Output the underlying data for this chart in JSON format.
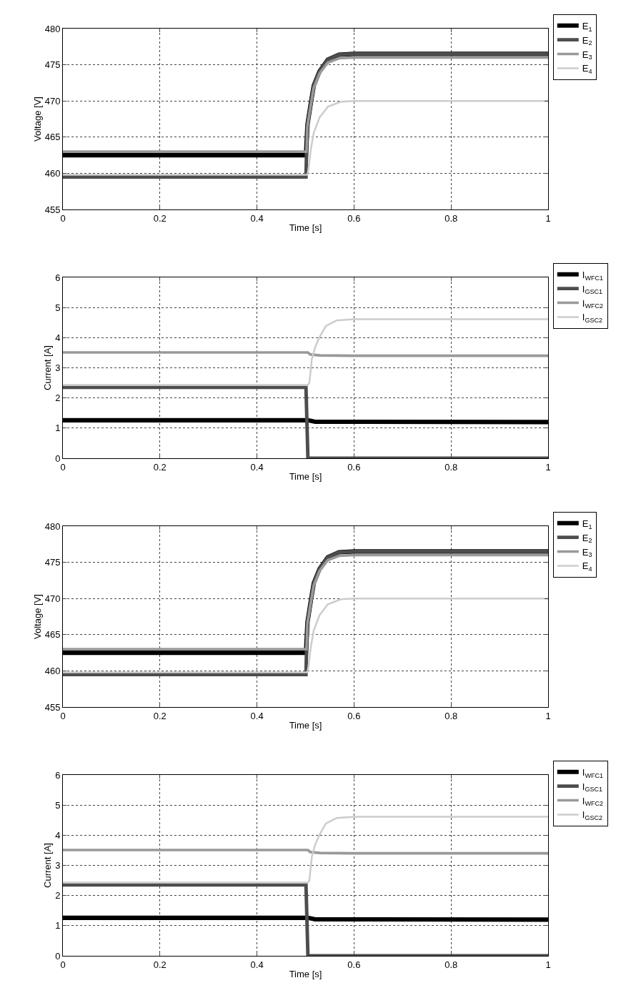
{
  "chart_data": [
    {
      "type": "line",
      "xlabel": "Time [s]",
      "ylabel": "Voltage [V]",
      "xlim": [
        0,
        1
      ],
      "xticks": [
        0,
        0.2,
        0.4,
        0.6,
        0.8,
        1
      ],
      "ylim": [
        455,
        480
      ],
      "yticks": [
        455,
        460,
        465,
        470,
        475,
        480
      ],
      "grid": true,
      "legend": "top right",
      "series": [
        {
          "name": "E$_{1}$",
          "color": "#000000",
          "x": [
            0,
            0.501,
            0.504,
            0.511,
            0.517,
            0.529,
            0.546,
            0.569,
            0.6,
            1
          ],
          "values": [
            462.5,
            462.5,
            466.7,
            469.7,
            472.1,
            474.1,
            475.7,
            476.4,
            476.5,
            476.5
          ]
        },
        {
          "name": "E$_{2}$",
          "color": "#4d4d4d",
          "x": [
            0,
            0.501,
            0.502,
            0.504,
            0.511,
            0.517,
            0.529,
            0.546,
            0.569,
            0.6,
            1
          ],
          "values": [
            459.5,
            459.5,
            462.5,
            466.7,
            469.7,
            472.1,
            474.1,
            475.7,
            476.4,
            476.5,
            476.5
          ]
        },
        {
          "name": "E$_{3}$",
          "color": "#999999",
          "x": [
            0,
            0.502,
            0.504,
            0.511,
            0.517,
            0.529,
            0.546,
            0.569,
            0.6,
            1
          ],
          "values": [
            463.0,
            463.0,
            466.5,
            469.4,
            471.8,
            473.8,
            475.3,
            475.9,
            476.0,
            476.0
          ]
        },
        {
          "name": "E$_{4}$",
          "color": "#cccccc",
          "x": [
            0,
            0.504,
            0.506,
            0.511,
            0.517,
            0.529,
            0.546,
            0.573,
            0.6,
            1
          ],
          "values": [
            459.8,
            459.8,
            460.5,
            463.3,
            465.6,
            467.7,
            469.2,
            469.9,
            470.0,
            470.0
          ]
        }
      ]
    },
    {
      "type": "line",
      "xlabel": "Time [s]",
      "ylabel": "Current [A]",
      "xlim": [
        0,
        1
      ],
      "xticks": [
        0,
        0.2,
        0.4,
        0.6,
        0.8,
        1
      ],
      "ylim": [
        0,
        6
      ],
      "yticks": [
        0,
        1,
        2,
        3,
        4,
        5,
        6
      ],
      "grid": true,
      "legend": "top right",
      "series": [
        {
          "name": "I$_{WFC1}$",
          "color": "#000000",
          "x": [
            0,
            0.505,
            0.52,
            1
          ],
          "values": [
            1.26,
            1.26,
            1.21,
            1.2
          ]
        },
        {
          "name": "I$_{GSC1}$",
          "color": "#4d4d4d",
          "x": [
            0,
            0.501,
            0.505,
            1
          ],
          "values": [
            2.35,
            2.35,
            0,
            0
          ]
        },
        {
          "name": "I$_{WFC2}$",
          "color": "#999999",
          "x": [
            0,
            0.505,
            0.51,
            0.53,
            0.6,
            1
          ],
          "values": [
            3.51,
            3.51,
            3.44,
            3.41,
            3.4,
            3.4
          ]
        },
        {
          "name": "I$_{GSC2}$",
          "color": "#cccccc",
          "x": [
            0,
            0.505,
            0.508,
            0.513,
            0.52,
            0.529,
            0.542,
            0.564,
            0.6,
            1
          ],
          "values": [
            2.43,
            2.43,
            2.5,
            3.28,
            3.69,
            4.02,
            4.39,
            4.57,
            4.61,
            4.61
          ]
        }
      ]
    },
    {
      "type": "line",
      "xlabel": "Time [s]",
      "ylabel": "Voltage [V]",
      "xlim": [
        0,
        1
      ],
      "xticks": [
        0,
        0.2,
        0.4,
        0.6,
        0.8,
        1
      ],
      "ylim": [
        455,
        480
      ],
      "yticks": [
        455,
        460,
        465,
        470,
        475,
        480
      ],
      "grid": true,
      "legend": "top right",
      "series": [
        {
          "name": "E$_{1}$",
          "color": "#000000",
          "x": [
            0,
            0.501,
            0.504,
            0.511,
            0.517,
            0.529,
            0.546,
            0.569,
            0.6,
            1
          ],
          "values": [
            462.5,
            462.5,
            466.7,
            469.7,
            472.1,
            474.1,
            475.7,
            476.4,
            476.5,
            476.5
          ]
        },
        {
          "name": "E$_{2}$",
          "color": "#4d4d4d",
          "x": [
            0,
            0.501,
            0.502,
            0.504,
            0.511,
            0.517,
            0.529,
            0.546,
            0.569,
            0.6,
            1
          ],
          "values": [
            459.5,
            459.5,
            462.5,
            466.7,
            469.7,
            472.1,
            474.1,
            475.7,
            476.4,
            476.5,
            476.5
          ]
        },
        {
          "name": "E$_{3}$",
          "color": "#999999",
          "x": [
            0,
            0.502,
            0.504,
            0.511,
            0.517,
            0.529,
            0.546,
            0.569,
            0.6,
            1
          ],
          "values": [
            463.0,
            463.0,
            466.5,
            469.4,
            471.8,
            473.8,
            475.3,
            475.9,
            476.0,
            476.0
          ]
        },
        {
          "name": "E$_{4}$",
          "color": "#cccccc",
          "x": [
            0,
            0.504,
            0.506,
            0.511,
            0.517,
            0.529,
            0.546,
            0.573,
            0.6,
            1
          ],
          "values": [
            459.8,
            459.8,
            460.5,
            463.3,
            465.6,
            467.7,
            469.2,
            469.9,
            470.0,
            470.0
          ]
        }
      ]
    },
    {
      "type": "line",
      "xlabel": "Time [s]",
      "ylabel": "Current [A]",
      "xlim": [
        0,
        1
      ],
      "xticks": [
        0,
        0.2,
        0.4,
        0.6,
        0.8,
        1
      ],
      "ylim": [
        0,
        6
      ],
      "yticks": [
        0,
        1,
        2,
        3,
        4,
        5,
        6
      ],
      "grid": true,
      "legend": "top right",
      "series": [
        {
          "name": "I$_{WFC1}$",
          "color": "#000000",
          "x": [
            0,
            0.505,
            0.52,
            1
          ],
          "values": [
            1.26,
            1.26,
            1.21,
            1.2
          ]
        },
        {
          "name": "I$_{GSC1}$",
          "color": "#4d4d4d",
          "x": [
            0,
            0.501,
            0.505,
            1
          ],
          "values": [
            2.35,
            2.35,
            0,
            0
          ]
        },
        {
          "name": "I$_{WFC2}$",
          "color": "#999999",
          "x": [
            0,
            0.505,
            0.51,
            0.53,
            0.6,
            1
          ],
          "values": [
            3.51,
            3.51,
            3.44,
            3.41,
            3.4,
            3.4
          ]
        },
        {
          "name": "I$_{GSC2}$",
          "color": "#cccccc",
          "x": [
            0,
            0.505,
            0.508,
            0.513,
            0.52,
            0.529,
            0.542,
            0.564,
            0.6,
            1
          ],
          "values": [
            2.43,
            2.43,
            2.5,
            3.28,
            3.69,
            4.02,
            4.39,
            4.57,
            4.61,
            4.61
          ]
        }
      ]
    }
  ]
}
